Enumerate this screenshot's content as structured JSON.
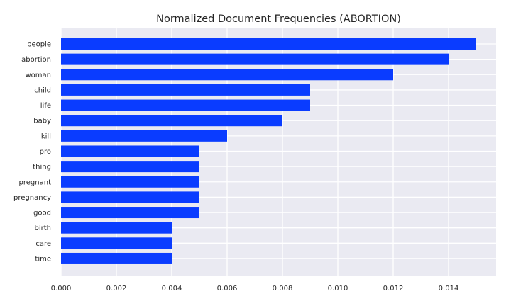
{
  "chart_data": {
    "type": "bar",
    "orientation": "horizontal",
    "title": "Normalized Document Frequencies (ABORTION)",
    "xlabel": "",
    "ylabel": "",
    "categories": [
      "people",
      "abortion",
      "woman",
      "child",
      "life",
      "baby",
      "kill",
      "pro",
      "thing",
      "pregnant",
      "pregnancy",
      "good",
      "birth",
      "care",
      "time"
    ],
    "values": [
      0.015,
      0.014,
      0.012,
      0.009,
      0.009,
      0.008,
      0.006,
      0.005,
      0.005,
      0.005,
      0.005,
      0.005,
      0.004,
      0.004,
      0.004
    ],
    "xlim": [
      0,
      0.0157
    ],
    "xticks": [
      "0.000",
      "0.002",
      "0.004",
      "0.006",
      "0.008",
      "0.010",
      "0.012",
      "0.014"
    ],
    "grid": true,
    "colors": {
      "bar": "#0a3cff",
      "plot_background": "#eaeaf2",
      "grid": "#ffffff",
      "text": "#262626"
    }
  }
}
